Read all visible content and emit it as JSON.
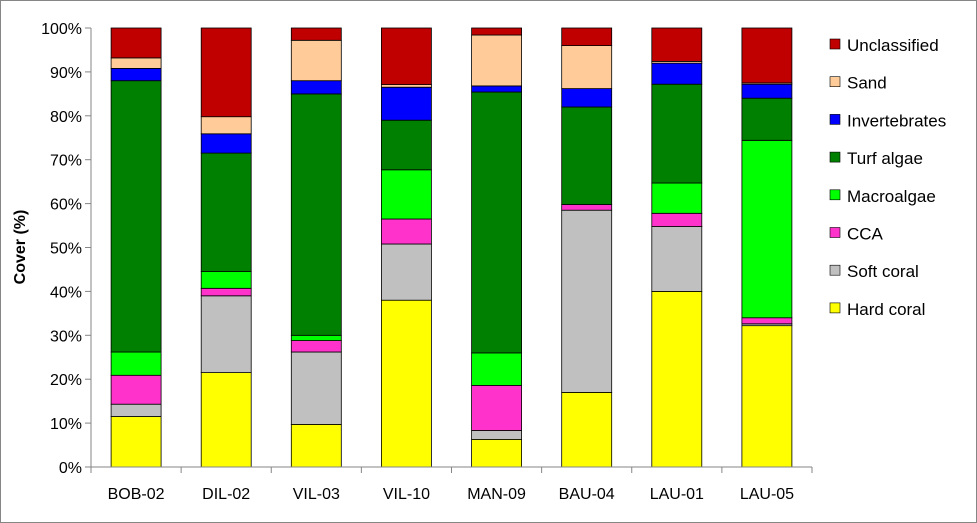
{
  "chart_data": {
    "type": "bar",
    "stacked": true,
    "title": "",
    "xlabel": "",
    "ylabel": "Cover (%)",
    "ylim": [
      0,
      100
    ],
    "yticks": [
      "0%",
      "10%",
      "20%",
      "30%",
      "40%",
      "50%",
      "60%",
      "70%",
      "80%",
      "90%",
      "100%"
    ],
    "grid": false,
    "legend_position": "right",
    "categories": [
      "BOB-02",
      "DIL-02",
      "VIL-03",
      "VIL-10",
      "MAN-09",
      "BAU-04",
      "LAU-01",
      "LAU-05"
    ],
    "series": [
      {
        "name": "Hard coral",
        "color": "#ffff00",
        "values": [
          11.5,
          21.5,
          9.7,
          38.0,
          6.3,
          17.0,
          40.0,
          32.2
        ]
      },
      {
        "name": "Soft coral",
        "color": "#c0c0c0",
        "values": [
          2.8,
          17.5,
          16.5,
          12.8,
          2.0,
          41.5,
          14.8,
          0.4
        ]
      },
      {
        "name": "CCA",
        "color": "#ff33cc",
        "values": [
          6.6,
          1.7,
          2.6,
          5.7,
          10.3,
          1.3,
          3.0,
          1.4
        ]
      },
      {
        "name": "Macroalgae",
        "color": "#00ff00",
        "values": [
          5.3,
          3.8,
          1.2,
          11.2,
          7.4,
          0.0,
          6.9,
          40.4
        ]
      },
      {
        "name": "Turf algae",
        "color": "#008000",
        "values": [
          61.8,
          27.0,
          55.0,
          11.3,
          59.4,
          22.2,
          22.5,
          9.6
        ]
      },
      {
        "name": "Invertebrates",
        "color": "#0000ff",
        "values": [
          2.8,
          4.4,
          3.0,
          7.5,
          1.4,
          4.2,
          4.8,
          3.2
        ]
      },
      {
        "name": "Sand",
        "color": "#ffcc99",
        "values": [
          2.4,
          3.9,
          9.2,
          0.6,
          11.6,
          9.8,
          0.4,
          0.3
        ]
      },
      {
        "name": "Unclassified",
        "color": "#c00000",
        "values": [
          6.8,
          20.2,
          2.8,
          12.9,
          1.6,
          4.0,
          7.6,
          12.5
        ]
      }
    ]
  }
}
